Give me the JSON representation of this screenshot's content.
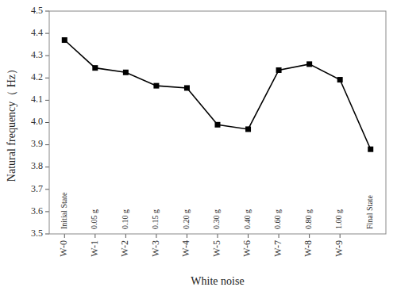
{
  "chart_data": {
    "type": "line",
    "categories": [
      "W-0",
      "W-1",
      "W-2",
      "W-3",
      "W-4",
      "W-5",
      "W-6",
      "W-7",
      "W-8",
      "W-9",
      null
    ],
    "values": [
      4.37,
      4.245,
      4.225,
      4.165,
      4.155,
      3.99,
      3.97,
      4.235,
      4.262,
      4.192,
      3.88
    ],
    "annotations": [
      "Initial State",
      "0.05 g",
      "0.10 g",
      "0.15 g",
      "0.20 g",
      "0.30 g",
      "0.40 g",
      "0.60 g",
      "0.80 g",
      "1.00 g",
      "Final State"
    ],
    "ylabel": "Natural frequency（ Hz）",
    "xlabel": "White noise",
    "ylim": [
      3.5,
      4.5
    ],
    "yticks": [
      3.5,
      3.6,
      3.7,
      3.8,
      3.9,
      {
        "value": 4.0,
        "label": "4.0"
      },
      4.1,
      4.2,
      4.3,
      4.4,
      4.5
    ],
    "color": "#000000",
    "marker": "square",
    "grid": false
  }
}
